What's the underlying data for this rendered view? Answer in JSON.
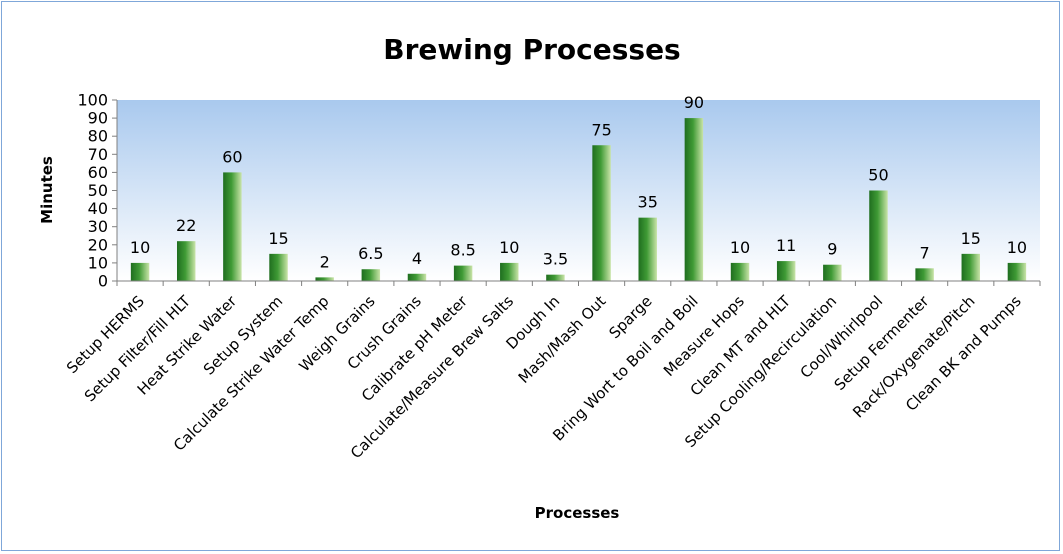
{
  "chart_data": {
    "type": "bar",
    "title": "Brewing Processes",
    "xlabel": "Processes",
    "ylabel": "Minutes",
    "ylim": [
      0,
      100
    ],
    "yticks": [
      0,
      10,
      20,
      30,
      40,
      50,
      60,
      70,
      80,
      90,
      100
    ],
    "grid": false,
    "legend": "none",
    "categories": [
      "Setup HERMS",
      "Setup Filter/Fill HLT",
      "Heat Strike Water",
      "Setup System",
      "Calculate Strike Water Temp",
      "Weigh Grains",
      "Crush Grains",
      "Calibrate pH Meter",
      "Calculate/Measure Brew Salts",
      "Dough In",
      "Mash/Mash Out",
      "Sparge",
      "Bring Wort to Boil and Boil",
      "Measure Hops",
      "Clean MT and HLT",
      "Setup Cooling/Recirculation",
      "Cool/Whirlpool",
      "Setup Fermenter",
      "Rack/Oxygenate/Pitch",
      "Clean BK and Pumps"
    ],
    "values": [
      10,
      22,
      60,
      15,
      2,
      6.5,
      4,
      8.5,
      10,
      3.5,
      75,
      35,
      90,
      10,
      11,
      9,
      50,
      7,
      15,
      10
    ],
    "data_labels": [
      "10",
      "22",
      "60",
      "15",
      "2",
      "6.5",
      "4",
      "8.5",
      "10",
      "3.5",
      "75",
      "35",
      "90",
      "10",
      "11",
      "9",
      "50",
      "7",
      "15",
      "10"
    ],
    "colors": {
      "bar_dark": "#1f6e1f",
      "bar_light": "#c9e4a8",
      "plot_bg_top": "#a9c9ee",
      "plot_bg_bottom": "#ffffff",
      "frame_border": "#7fa7d9"
    }
  }
}
